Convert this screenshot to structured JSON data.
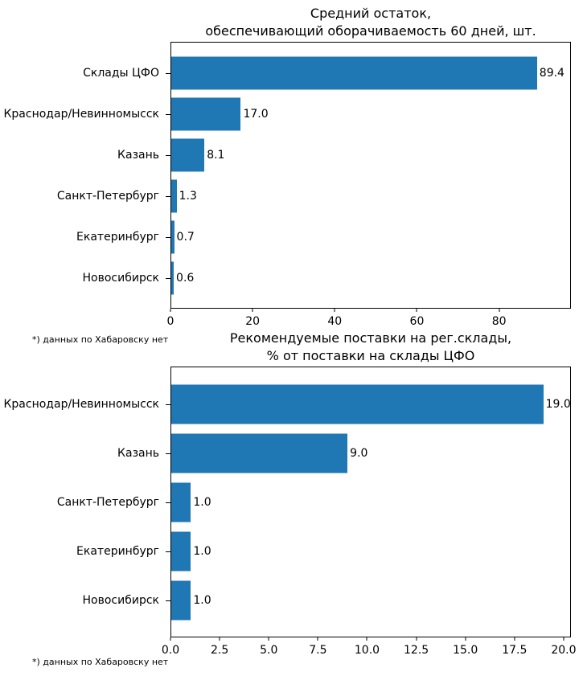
{
  "figure": {
    "background": "#ffffff",
    "text_color": "#000000",
    "accent_color": "#1f77b4"
  },
  "chart_data": [
    {
      "type": "bar",
      "orientation": "horizontal",
      "title": "Средний остаток,\nобеспечивающий оборачиваемость 60 дней, шт.",
      "categories": [
        "Склады ЦФО",
        "Краснодар/Невинномысск",
        "Казань",
        "Санкт-Петербург",
        "Екатеринбург",
        "Новосибирск"
      ],
      "values": [
        89.4,
        17.0,
        8.1,
        1.3,
        0.7,
        0.6
      ],
      "value_labels": [
        "89.4",
        "17.0",
        "8.1",
        "1.3",
        "0.7",
        "0.6"
      ],
      "xlim": [
        0,
        97.5
      ],
      "xtick_values": [
        0,
        20,
        40,
        60,
        80
      ],
      "xtick_labels": [
        "0",
        "20",
        "40",
        "60",
        "80"
      ],
      "bar_color": "#1f77b4",
      "grid": false,
      "footnote": "*) данных по Хабаровску нет"
    },
    {
      "type": "bar",
      "orientation": "horizontal",
      "title": "Рекомендуемые поставки на рег.склады,\n% от поставки на склады ЦФО",
      "categories": [
        "Краснодар/Невинномысск",
        "Казань",
        "Санкт-Петербург",
        "Екатеринбург",
        "Новосибирск"
      ],
      "values": [
        19.0,
        9.0,
        1.0,
        1.0,
        1.0
      ],
      "value_labels": [
        "19.0",
        "9.0",
        "1.0",
        "1.0",
        "1.0"
      ],
      "xlim": [
        0,
        20.37
      ],
      "xtick_values": [
        0,
        2.5,
        5,
        7.5,
        10,
        12.5,
        15,
        17.5,
        20
      ],
      "xtick_labels": [
        "0.0",
        "2.5",
        "5.0",
        "7.5",
        "10.0",
        "12.5",
        "15.0",
        "17.5",
        "20.0"
      ],
      "bar_color": "#1f77b4",
      "grid": false,
      "footnote": "*) данных по Хабаровску нет"
    }
  ]
}
